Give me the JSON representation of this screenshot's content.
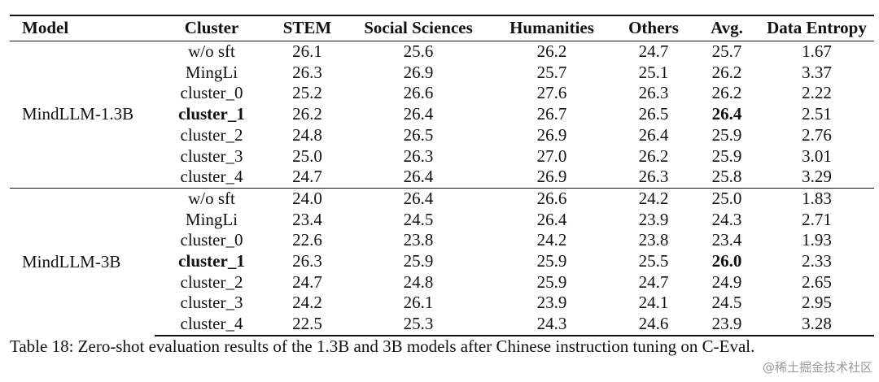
{
  "table": {
    "headers": [
      "Model",
      "Cluster",
      "STEM",
      "Social Sciences",
      "Humanities",
      "Others",
      "Avg.",
      "Data Entropy"
    ],
    "groups": [
      {
        "model": "MindLLM-1.3B",
        "rows": [
          {
            "cluster": "w/o sft",
            "stem": "26.1",
            "social": "25.6",
            "humanities": "26.2",
            "others": "24.7",
            "avg": "25.7",
            "entropy": "1.67"
          },
          {
            "cluster": "MingLi",
            "stem": "26.3",
            "social": "26.9",
            "humanities": "25.7",
            "others": "25.1",
            "avg": "26.2",
            "entropy": "3.37"
          },
          {
            "cluster": "cluster_0",
            "stem": "25.2",
            "social": "26.6",
            "humanities": "27.6",
            "others": "26.3",
            "avg": "26.2",
            "entropy": "2.22"
          },
          {
            "cluster": "cluster_1",
            "stem": "26.2",
            "social": "26.4",
            "humanities": "26.7",
            "others": "26.5",
            "avg": "26.4",
            "entropy": "2.51"
          },
          {
            "cluster": "cluster_2",
            "stem": "24.8",
            "social": "26.5",
            "humanities": "26.9",
            "others": "26.4",
            "avg": "25.9",
            "entropy": "2.76"
          },
          {
            "cluster": "cluster_3",
            "stem": "25.0",
            "social": "26.3",
            "humanities": "27.0",
            "others": "26.2",
            "avg": "25.9",
            "entropy": "3.01"
          },
          {
            "cluster": "cluster_4",
            "stem": "24.7",
            "social": "26.4",
            "humanities": "26.9",
            "others": "26.3",
            "avg": "25.8",
            "entropy": "3.29"
          }
        ]
      },
      {
        "model": "MindLLM-3B",
        "rows": [
          {
            "cluster": "w/o sft",
            "stem": "24.0",
            "social": "26.4",
            "humanities": "26.6",
            "others": "24.2",
            "avg": "25.0",
            "entropy": "1.83"
          },
          {
            "cluster": "MingLi",
            "stem": "23.4",
            "social": "24.5",
            "humanities": "26.4",
            "others": "23.9",
            "avg": "24.3",
            "entropy": "2.71"
          },
          {
            "cluster": "cluster_0",
            "stem": "22.6",
            "social": "23.8",
            "humanities": "24.2",
            "others": "23.8",
            "avg": "23.4",
            "entropy": "1.93"
          },
          {
            "cluster": "cluster_1",
            "stem": "26.3",
            "social": "25.9",
            "humanities": "25.9",
            "others": "25.5",
            "avg": "26.0",
            "entropy": "2.33"
          },
          {
            "cluster": "cluster_2",
            "stem": "24.7",
            "social": "24.8",
            "humanities": "25.9",
            "others": "24.7",
            "avg": "24.9",
            "entropy": "2.65"
          },
          {
            "cluster": "cluster_3",
            "stem": "24.2",
            "social": "26.1",
            "humanities": "23.9",
            "others": "24.1",
            "avg": "24.5",
            "entropy": "2.95"
          },
          {
            "cluster": "cluster_4",
            "stem": "22.5",
            "social": "25.3",
            "humanities": "24.3",
            "others": "24.6",
            "avg": "23.9",
            "entropy": "3.28"
          }
        ]
      }
    ]
  },
  "caption": "Table 18: Zero-shot evaluation results of the 1.3B and 3B models after Chinese instruction tuning on C-Eval.",
  "watermark": "@稀土掘金技术社区"
}
